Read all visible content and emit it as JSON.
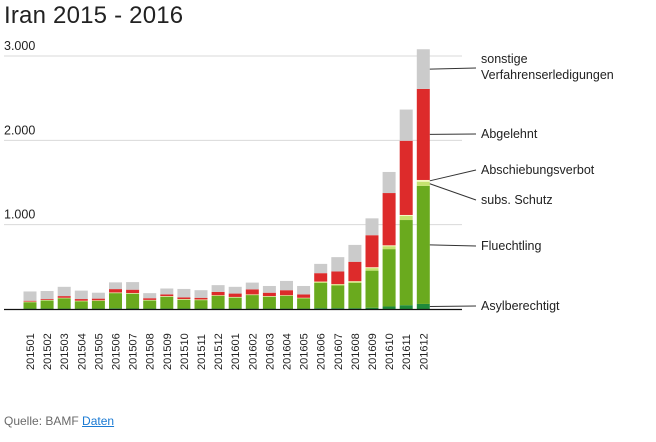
{
  "chart_data": {
    "type": "bar",
    "stacked": true,
    "title": "Iran 2015 - 2016",
    "xlabel": "",
    "ylabel": "",
    "ylim": [
      0,
      3200
    ],
    "yticks": [
      {
        "value": 1000,
        "label": "1.000"
      },
      {
        "value": 2000,
        "label": "2.000"
      },
      {
        "value": 3000,
        "label": "3.000"
      }
    ],
    "categories": [
      "201501",
      "201502",
      "201503",
      "201504",
      "201505",
      "201506",
      "201507",
      "201508",
      "201509",
      "201510",
      "201511",
      "201512",
      "201601",
      "201602",
      "201603",
      "201604",
      "201605",
      "201606",
      "201607",
      "201608",
      "201609",
      "201610",
      "201611",
      "201612"
    ],
    "series": [
      {
        "name": "Asylberechtigt",
        "label": "Asylberechtigt",
        "color": "#1e8a3a",
        "values": [
          5,
          5,
          5,
          5,
          5,
          8,
          6,
          5,
          5,
          5,
          5,
          5,
          5,
          5,
          5,
          5,
          5,
          10,
          10,
          10,
          15,
          30,
          45,
          60
        ]
      },
      {
        "name": "Fluechtling",
        "label": "Fluechtling",
        "color": "#6aaa1e",
        "values": [
          75,
          95,
          120,
          85,
          90,
          180,
          175,
          95,
          140,
          105,
          100,
          150,
          130,
          160,
          140,
          150,
          120,
          300,
          270,
          300,
          440,
          680,
          1010,
          1400
        ]
      },
      {
        "name": "subs. Schutz",
        "label": "subs. Schutz",
        "color": "#c5e26e",
        "values": [
          5,
          5,
          5,
          5,
          5,
          5,
          5,
          5,
          5,
          5,
          5,
          5,
          5,
          5,
          5,
          5,
          5,
          10,
          10,
          15,
          30,
          35,
          50,
          50
        ]
      },
      {
        "name": "Abschiebungsverbot",
        "label": "Abschiebungsverbot",
        "color": "#f6f9c0",
        "values": [
          3,
          3,
          3,
          3,
          3,
          3,
          3,
          3,
          3,
          3,
          3,
          3,
          3,
          3,
          3,
          3,
          3,
          5,
          5,
          5,
          10,
          10,
          10,
          20
        ]
      },
      {
        "name": "Abgelehnt",
        "label": "Abgelehnt",
        "color": "#dd2b2b",
        "values": [
          10,
          10,
          20,
          20,
          20,
          40,
          40,
          20,
          20,
          20,
          20,
          40,
          40,
          60,
          40,
          60,
          40,
          100,
          150,
          230,
          380,
          620,
          880,
          1080
        ]
      },
      {
        "name": "sonstige Verfahrenserledigungen",
        "label": "sonstige\nVerfahrenserledigungen",
        "color": "#cbcbcb",
        "values": [
          110,
          95,
          110,
          100,
          70,
          80,
          90,
          60,
          70,
          100,
          90,
          80,
          80,
          80,
          80,
          110,
          100,
          110,
          170,
          200,
          200,
          250,
          370,
          470
        ]
      }
    ]
  },
  "source": {
    "prefix": "Quelle: BAMF",
    "link_label": "Daten"
  }
}
